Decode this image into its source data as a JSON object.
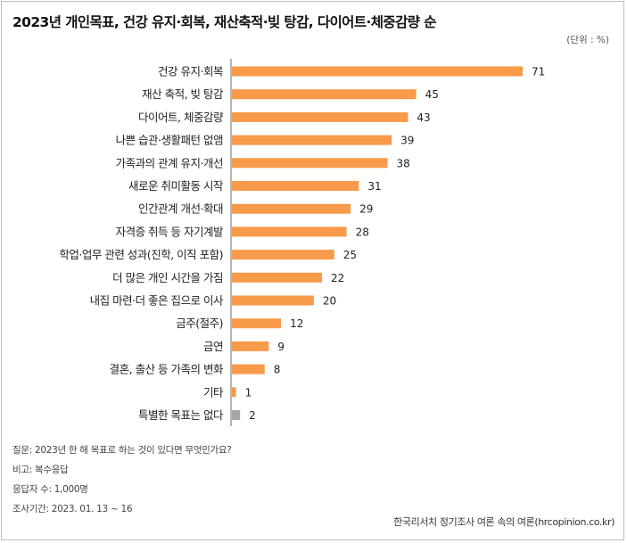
{
  "chart_data": {
    "type": "bar",
    "orientation": "horizontal",
    "title": "2023년 개인목표, 건강 유지·회복, 재산축적·빚 탕감, 다이어트·체중감량 순",
    "unit_label": "(단위 : %)",
    "xlim": [
      0,
      71
    ],
    "categories": [
      "건강 유지·회복",
      "재산 축적, 빚 탕감",
      "다이어트, 체중감량",
      "나쁜 습관·생활패턴 없앰",
      "가족과의 관계 유지·개선",
      "새로운 취미활동 시작",
      "인간관계 개선·확대",
      "자격증 취득 등 자기계발",
      "학업·업무 관련 성과(진학, 이직 포함)",
      "더 많은 개인 시간을 가짐",
      "내집 마련·더 좋은 집으로 이사",
      "금주(절주)",
      "금연",
      "결혼, 출산 등 가족의 변화",
      "기타",
      "특별한 목표는 없다"
    ],
    "values": [
      71,
      45,
      43,
      39,
      38,
      31,
      29,
      28,
      25,
      22,
      20,
      12,
      9,
      8,
      1,
      2
    ],
    "colors": [
      "#f79a4a",
      "#f79a4a",
      "#f79a4a",
      "#f79a4a",
      "#f79a4a",
      "#f79a4a",
      "#f79a4a",
      "#f79a4a",
      "#f79a4a",
      "#f79a4a",
      "#f79a4a",
      "#f79a4a",
      "#f79a4a",
      "#f79a4a",
      "#f79a4a",
      "#a6a6a6"
    ]
  },
  "notes": {
    "question": "질문:  2023년 한 해 목표로 하는 것이 있다면 무엇인가요?",
    "note": "비고: 복수응답",
    "respondents": "응답자 수: 1,000명",
    "period": "조사기간: 2023. 01. 13 ~ 16"
  },
  "source": "한국리서치 정기조사 여론 속의 여론(hrcopinion.co.kr)"
}
